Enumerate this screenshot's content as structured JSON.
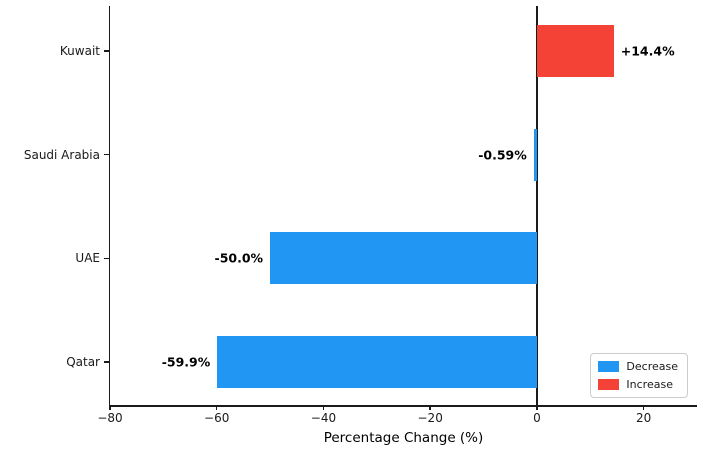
{
  "chart_data": {
    "type": "bar",
    "orientation": "horizontal",
    "title": "",
    "xlabel": "Percentage Change (%)",
    "ylabel": "",
    "categories": [
      "Kuwait",
      "Saudi Arabia",
      "UAE",
      "Qatar"
    ],
    "values": [
      14.4,
      -0.59,
      -50.0,
      -59.9
    ],
    "bar_labels": [
      "+14.4%",
      "-0.59%",
      "-50.0%",
      "-59.9%"
    ],
    "bar_colors": [
      "#F44336",
      "#2196F3",
      "#2196F3",
      "#2196F3"
    ],
    "xlim": [
      -80,
      30
    ],
    "xticks": [
      -80,
      -60,
      -40,
      -20,
      0,
      20
    ],
    "xtick_labels": [
      "−80",
      "−60",
      "−40",
      "−20",
      "0",
      "20"
    ],
    "zero_line": true,
    "grid": false,
    "legend": {
      "position": "lower right",
      "entries": [
        {
          "label": "Decrease",
          "color": "#2196F3"
        },
        {
          "label": "Increase",
          "color": "#F44336"
        }
      ]
    },
    "colors": {
      "decrease": "#2196F3",
      "increase": "#F44336",
      "axis": "#1a1a1a",
      "background": "#ffffff"
    }
  }
}
